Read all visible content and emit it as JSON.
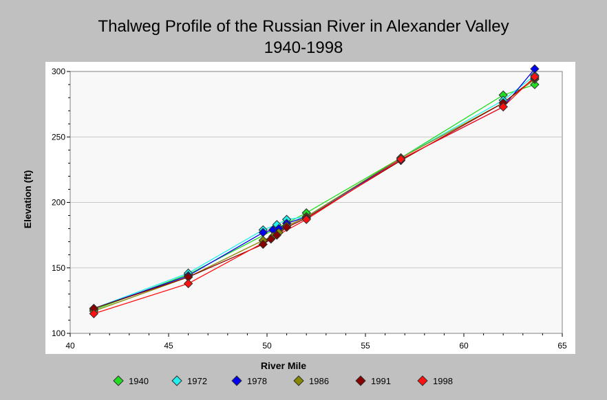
{
  "chart_data": {
    "type": "line",
    "title": "Thalweg Profile of the Russian River in Alexander Valley",
    "subtitle": "1940-1998",
    "xlabel": "River Mile",
    "ylabel": "Elevation (ft)",
    "xlim": [
      40,
      65
    ],
    "ylim": [
      100,
      300
    ],
    "xticks": [
      "40",
      "45",
      "50",
      "55",
      "60",
      "65"
    ],
    "yticks": [
      "100",
      "150",
      "200",
      "250",
      "300"
    ],
    "x_tick_values": [
      40,
      45,
      50,
      55,
      60,
      65
    ],
    "y_tick_values": [
      100,
      150,
      200,
      250,
      300
    ],
    "grid": true,
    "legend_position": "bottom",
    "series": [
      {
        "name": "1940",
        "color": "#22dd22",
        "points": [
          [
            41.2,
            118
          ],
          [
            46.0,
            145
          ],
          [
            52.0,
            192
          ],
          [
            56.8,
            234
          ],
          [
            62.0,
            282
          ],
          [
            63.6,
            290
          ]
        ]
      },
      {
        "name": "1972",
        "color": "#22eeee",
        "points": [
          [
            41.2,
            119
          ],
          [
            46.0,
            146
          ],
          [
            49.8,
            179
          ],
          [
            50.5,
            183
          ],
          [
            51.0,
            187
          ],
          [
            52.0,
            189
          ],
          [
            56.8,
            234
          ],
          [
            62.0,
            278
          ],
          [
            63.6,
            297
          ]
        ]
      },
      {
        "name": "1978",
        "color": "#0000ee",
        "points": [
          [
            41.2,
            119
          ],
          [
            46.0,
            144
          ],
          [
            49.8,
            177
          ],
          [
            50.3,
            179
          ],
          [
            50.6,
            180
          ],
          [
            51.0,
            184
          ],
          [
            52.0,
            189
          ],
          [
            56.8,
            233
          ],
          [
            62.0,
            273
          ],
          [
            63.6,
            302
          ]
        ]
      },
      {
        "name": "1986",
        "color": "#888800",
        "points": [
          [
            41.2,
            117
          ],
          [
            46.0,
            143
          ],
          [
            49.8,
            171
          ],
          [
            50.3,
            174
          ],
          [
            50.6,
            177
          ],
          [
            51.0,
            182
          ],
          [
            52.0,
            189
          ],
          [
            56.8,
            234
          ],
          [
            62.0,
            276
          ],
          [
            63.6,
            294
          ]
        ]
      },
      {
        "name": "1991",
        "color": "#880000",
        "points": [
          [
            41.2,
            119
          ],
          [
            46.0,
            143
          ],
          [
            49.8,
            168
          ],
          [
            50.2,
            172
          ],
          [
            50.5,
            175
          ],
          [
            51.0,
            181
          ],
          [
            52.0,
            188
          ],
          [
            56.8,
            232
          ],
          [
            62.0,
            276
          ],
          [
            63.6,
            295
          ]
        ]
      },
      {
        "name": "1998",
        "color": "#ff1111",
        "points": [
          [
            41.2,
            115
          ],
          [
            46.0,
            138
          ],
          [
            52.0,
            187
          ],
          [
            56.8,
            233
          ],
          [
            62.0,
            273
          ],
          [
            63.6,
            296
          ]
        ]
      }
    ]
  }
}
